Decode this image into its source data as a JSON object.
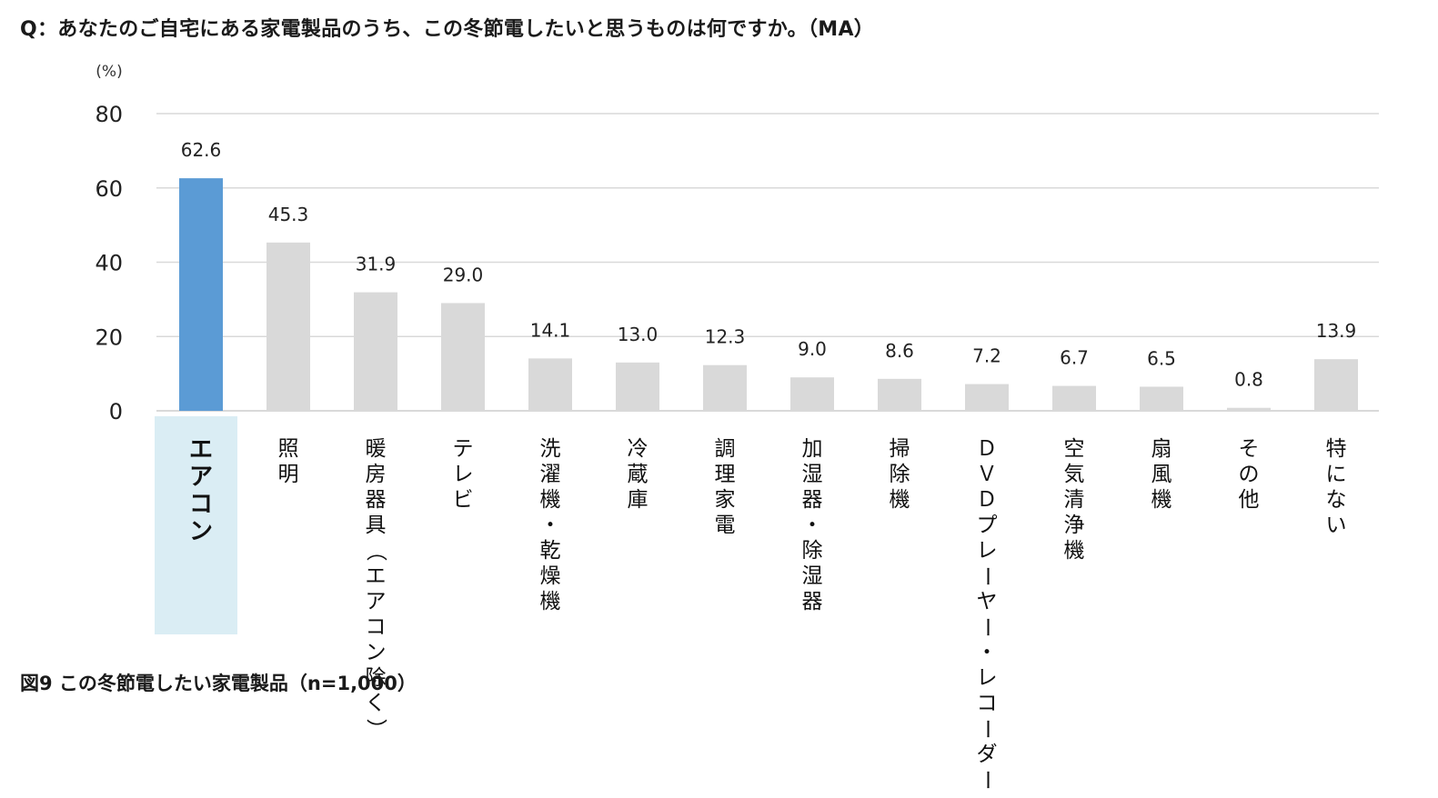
{
  "question": "Q：あなたのご自宅にある家電製品のうち、この冬節電したいと思うものは何ですか。（MA）",
  "caption": "図9  この冬節電したい家電製品（n=1,000）",
  "colors": {
    "highlight": "#5b9bd5",
    "default": "#d9d9d9",
    "highlight_bg": "#daedf4",
    "grid": "#d9d9d9"
  },
  "chart_data": {
    "type": "bar",
    "unit_label": "(%)",
    "ylim": [
      0,
      80
    ],
    "yticks": [
      0,
      20,
      40,
      60,
      80
    ],
    "grid": true,
    "categories": [
      "エアコン",
      "照明",
      "暖房器具（エアコン除く）",
      "テレビ",
      "洗濯機・乾燥機",
      "冷蔵庫",
      "調理家電",
      "加湿器・除湿器",
      "掃除機",
      "ＤＶＤプレーヤー・レコーダー",
      "空気清浄機",
      "扇風機",
      "その他",
      "特にない"
    ],
    "values": [
      62.6,
      45.3,
      31.9,
      29.0,
      14.1,
      13.0,
      12.3,
      9.0,
      8.6,
      7.2,
      6.7,
      6.5,
      0.8,
      13.9
    ],
    "value_labels": [
      "62.6",
      "45.3",
      "31.9",
      "29.0",
      "14.1",
      "13.0",
      "12.3",
      "9.0",
      "8.6",
      "7.2",
      "6.7",
      "6.5",
      "0.8",
      "13.9"
    ],
    "highlight_index": 0
  }
}
